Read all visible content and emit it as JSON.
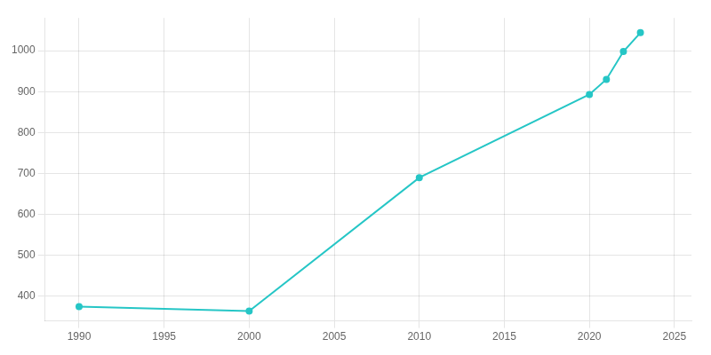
{
  "chart_data": {
    "type": "line",
    "x": [
      1990,
      2000,
      2010,
      2020,
      2021,
      2022,
      2023
    ],
    "values": [
      375,
      364,
      690,
      893,
      930,
      998,
      1044
    ],
    "color": "#26C6C6",
    "marker": "o",
    "xlim": [
      1988,
      2026
    ],
    "xticks": [
      1990,
      1995,
      2000,
      2005,
      2010,
      2015,
      2020,
      2025
    ],
    "ylim": [
      340,
      1080
    ],
    "yticks": [
      400,
      500,
      600,
      700,
      800,
      900,
      1000
    ],
    "grid": true
  }
}
